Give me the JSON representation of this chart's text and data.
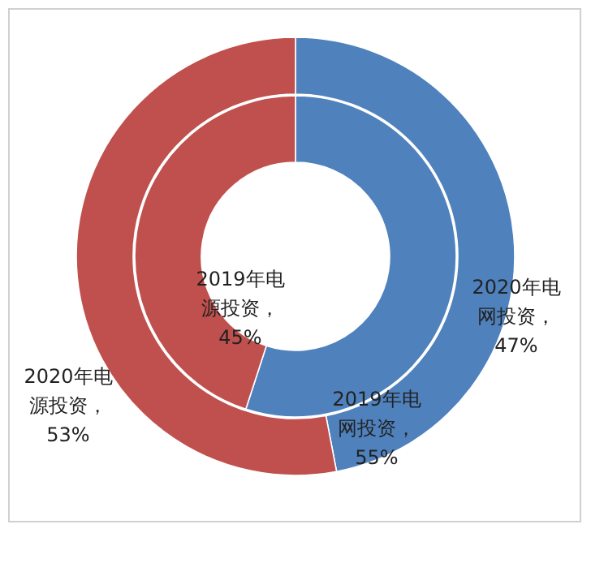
{
  "chart_data": {
    "type": "donut",
    "categories": [
      null,
      null
    ],
    "series": [
      {
        "values": [
          47,
          53
        ],
        "colors": [
          "#4f81bd",
          "#c0504d"
        ],
        "value_labels": [
          "2020年电网投资，47%",
          "2020年电源投资，53%"
        ]
      },
      {
        "values": [
          55,
          45
        ],
        "colors": [
          "#4f81bd",
          "#c0504d"
        ],
        "value_labels": [
          "2019年电网投资，55%",
          "2019年电源投资，45%"
        ]
      }
    ]
  }
}
